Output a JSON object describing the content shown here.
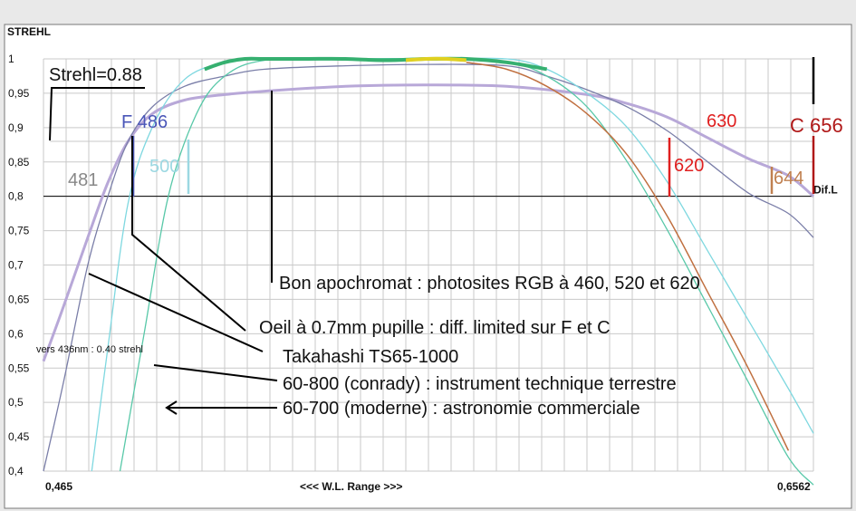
{
  "chart_data": {
    "type": "line",
    "title": "",
    "ylabel": "STREHL",
    "xlabel": "<<<  W.L. Range  >>>",
    "xlim": [
      0.465,
      0.6562
    ],
    "ylim": [
      0.4,
      1.0
    ],
    "x_tick_labels": [
      "0,465",
      "0,6562"
    ],
    "y_tick_labels": [
      "0,4",
      "0,45",
      "0,5",
      "0,55",
      "0,6",
      "0,65",
      "0,7",
      "0,75",
      "0,8",
      "0,85",
      "0,9",
      "0,95",
      "1"
    ],
    "y_ticks": [
      0.4,
      0.45,
      0.5,
      0.55,
      0.6,
      0.65,
      0.7,
      0.75,
      0.8,
      0.85,
      0.9,
      0.95,
      1.0
    ],
    "grid": true,
    "reference_lines": [
      {
        "label": "Dif.L",
        "y": 0.8
      },
      {
        "label": "Strehl=0.88",
        "y": 0.88
      }
    ],
    "series": [
      {
        "color": "#b8a8d8",
        "x": [
          0.465,
          0.47,
          0.476,
          0.481,
          0.486,
          0.492,
          0.5,
          0.51,
          0.52,
          0.54,
          0.56,
          0.58,
          0.6,
          0.61,
          0.62,
          0.63,
          0.64,
          0.65,
          0.6562
        ],
        "y": [
          0.56,
          0.64,
          0.74,
          0.82,
          0.88,
          0.92,
          0.94,
          0.948,
          0.953,
          0.96,
          0.962,
          0.96,
          0.948,
          0.935,
          0.915,
          0.885,
          0.855,
          0.83,
          0.8
        ]
      },
      {
        "color": "#7a7ea8",
        "x": [
          0.465,
          0.47,
          0.476,
          0.481,
          0.486,
          0.492,
          0.5,
          0.51,
          0.52,
          0.54,
          0.56,
          0.58,
          0.59,
          0.6,
          0.61,
          0.62,
          0.63,
          0.64,
          0.65,
          0.6562
        ],
        "y": [
          0.4,
          0.53,
          0.7,
          0.8,
          0.88,
          0.93,
          0.96,
          0.975,
          0.985,
          0.99,
          0.992,
          0.99,
          0.975,
          0.955,
          0.93,
          0.895,
          0.85,
          0.805,
          0.775,
          0.74
        ]
      },
      {
        "color": "#7fd8e0",
        "x": [
          0.477,
          0.481,
          0.486,
          0.492,
          0.5,
          0.51,
          0.52,
          0.54,
          0.56,
          0.58,
          0.59,
          0.6,
          0.61,
          0.62,
          0.63,
          0.64,
          0.65,
          0.6562
        ],
        "y": [
          0.4,
          0.58,
          0.79,
          0.9,
          0.97,
          0.995,
          1.0,
          1.0,
          1.0,
          1.0,
          0.985,
          0.95,
          0.9,
          0.82,
          0.72,
          0.62,
          0.52,
          0.455
        ]
      },
      {
        "color": "#58c8a8",
        "x": [
          0.484,
          0.49,
          0.496,
          0.503,
          0.51,
          0.52,
          0.54,
          0.56,
          0.58,
          0.59,
          0.6,
          0.61,
          0.62,
          0.63,
          0.64,
          0.65,
          0.6562
        ],
        "y": [
          0.4,
          0.6,
          0.8,
          0.92,
          0.975,
          0.998,
          1.0,
          1.0,
          0.995,
          0.975,
          0.93,
          0.85,
          0.75,
          0.64,
          0.53,
          0.42,
          0.38
        ]
      },
      {
        "color": "#36b070",
        "x": [
          0.505,
          0.51,
          0.515,
          0.52,
          0.53,
          0.54,
          0.55,
          0.56,
          0.57,
          0.58,
          0.59
        ],
        "y": [
          0.985,
          0.995,
          1.0,
          1.0,
          1.0,
          1.0,
          0.998,
          1.0,
          1.0,
          0.995,
          0.985
        ]
      },
      {
        "color": "#e0d020",
        "x": [
          0.555,
          0.56,
          0.565,
          0.57
        ],
        "y": [
          0.998,
          1.0,
          1.0,
          0.998
        ]
      },
      {
        "color": "#c07040",
        "x": [
          0.57,
          0.58,
          0.59,
          0.6,
          0.61,
          0.62,
          0.63,
          0.64,
          0.65
        ],
        "y": [
          0.995,
          0.985,
          0.96,
          0.92,
          0.86,
          0.77,
          0.66,
          0.55,
          0.43
        ]
      }
    ],
    "annotations": [
      {
        "text": "481",
        "color": "#888888",
        "y": 0.8
      },
      {
        "text": "F 486",
        "color": "#4a56b8"
      },
      {
        "text": "500",
        "color": "#9cd8e2"
      },
      {
        "text": "620",
        "color": "#e02020"
      },
      {
        "text": "630",
        "color": "#e02020"
      },
      {
        "text": "C 656",
        "color": "#b01818"
      },
      {
        "text": "644",
        "color": "#c08050"
      },
      {
        "text": "Bon apochromat : photosites RGB à 460, 520 et 620",
        "color": "#111111"
      },
      {
        "text": "Oeil à 0.7mm pupille : diff. limited  sur F et C",
        "color": "#111111"
      },
      {
        "text": "Takahashi TS65-1000",
        "color": "#111111"
      },
      {
        "text": "60-800 (conrady) : instrument technique terrestre",
        "color": "#111111"
      },
      {
        "text": "60-700 (moderne) : astronomie commerciale",
        "color": "#111111"
      },
      {
        "text": "vers 436nm : 0.40 strehl",
        "color": "#111111"
      }
    ]
  }
}
